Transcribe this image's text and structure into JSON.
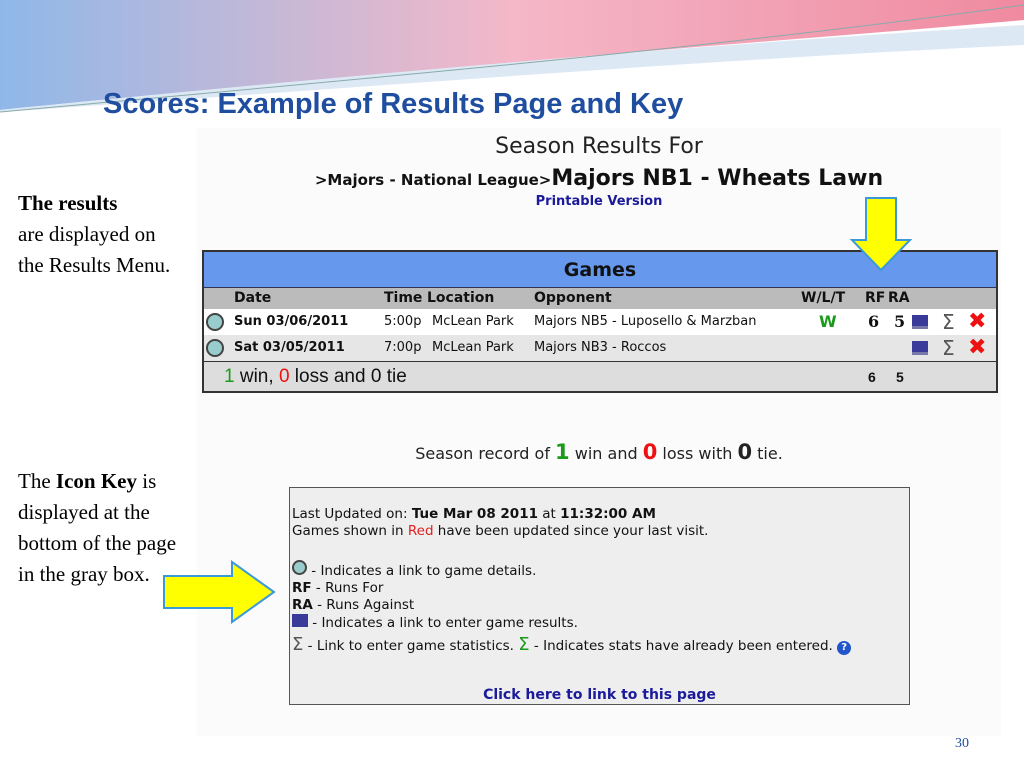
{
  "slide": {
    "title": "Scores:  Example of Results Page and Key",
    "page_number": "30",
    "left_text_1": {
      "bold": "The results",
      "rest": "are displayed on the Results Menu."
    },
    "left_text_2": {
      "pre": "The ",
      "bold": "Icon Key",
      "rest": "is displayed at the bottom of the page in the gray box."
    }
  },
  "page": {
    "heading": "Season Results For",
    "breadcrumb_prefix": ">Majors - National League>",
    "breadcrumb_current": "Majors NB1 - Wheats Lawn",
    "printable": "Printable Version"
  },
  "games": {
    "title": "Games",
    "columns": [
      "Date",
      "Time",
      "Location",
      "Opponent",
      "W/L/T",
      "RF",
      "RA"
    ],
    "rows": [
      {
        "date": "Sun 03/06/2011",
        "time": "5:00p",
        "location": "McLean Park",
        "opponent": "Majors NB5 - Luposello & Marzban",
        "result": "W",
        "rf": "6",
        "ra": "5"
      },
      {
        "date": "Sat 03/05/2011",
        "time": "7:00p",
        "location": "McLean Park",
        "opponent": "Majors NB3 - Roccos",
        "result": "",
        "rf": "",
        "ra": ""
      }
    ],
    "summary": {
      "wins": "1",
      "win_label": " win, ",
      "losses": "0",
      "loss_label": " loss and ",
      "ties": "0",
      "tie_label": " tie",
      "rf": "6",
      "ra": "5"
    }
  },
  "record": {
    "pre": "Season record of ",
    "wins": "1",
    "mid1": " win and ",
    "losses": "0",
    "mid2": " loss with ",
    "ties": "0",
    "post": " tie."
  },
  "key": {
    "updated_label": "Last Updated on: ",
    "updated_date": "Tue Mar 08 2011",
    "at": " at ",
    "updated_time": "11:32:00 AM",
    "red_pre": "Games shown in ",
    "red_word": "Red",
    "red_post": " have been updated since your last visit.",
    "details": " - Indicates a link to game details.",
    "rf_abbr": "RF",
    "rf_desc": " - Runs For",
    "ra_abbr": "RA",
    "ra_desc": " - Runs Against",
    "enter": " - Indicates a link to enter game results.",
    "stats": " - Link to enter game statistics. ",
    "stats_done": " - Indicates stats have already been entered.",
    "link": "Click here to link to this page"
  },
  "colors": {
    "title": "#1f4ea0",
    "games_header": "#6699ee",
    "win": "#1a9a1a",
    "loss": "#e11111",
    "arrow": "#ffff00"
  }
}
